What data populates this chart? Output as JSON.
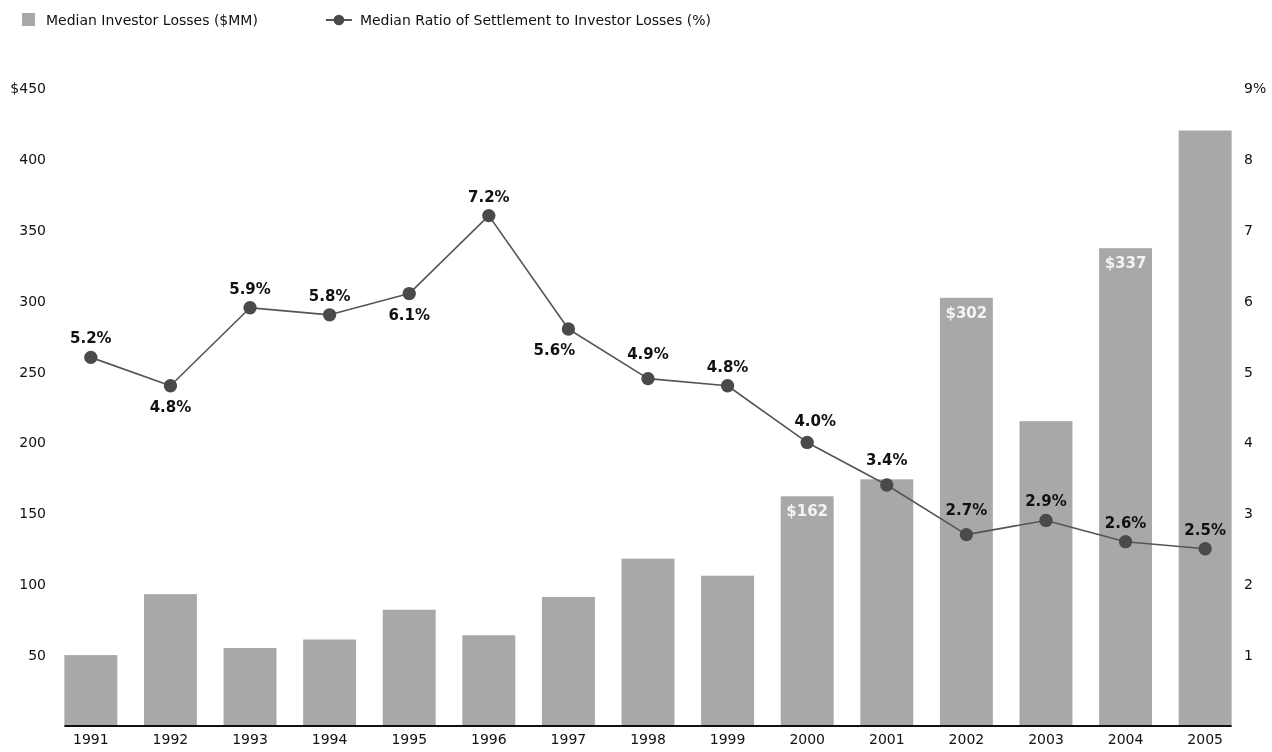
{
  "chart_data": {
    "type": "bar",
    "categories": [
      "1991",
      "1992",
      "1993",
      "1994",
      "1995",
      "1996",
      "1997",
      "1998",
      "1999",
      "2000",
      "2001",
      "2002",
      "2003",
      "2004",
      "2005"
    ],
    "series": [
      {
        "name": "Median Investor Losses ($MM)",
        "color": "#a8a8a8",
        "values": [
          50,
          93,
          55,
          61,
          82,
          64,
          91,
          118,
          106,
          162,
          174,
          302,
          215,
          337,
          420
        ],
        "value_labels": [
          null,
          null,
          null,
          null,
          null,
          null,
          null,
          null,
          null,
          "$162",
          null,
          "$302",
          null,
          "$337",
          null
        ]
      },
      {
        "type": "line",
        "axis": "y2",
        "name": "Median Ratio of Settlement to Investor Losses (%)",
        "color": "#555555",
        "values": [
          5.2,
          4.8,
          5.9,
          5.8,
          6.1,
          7.2,
          5.6,
          4.9,
          4.8,
          4,
          3.4,
          2.7,
          2.9,
          2.6,
          2.5
        ],
        "value_labels": [
          "5.2%",
          "4.8%",
          "5.9%",
          "5.8%",
          "6.1%",
          "7.2%",
          "5.6%",
          "4.9%",
          "4.8%",
          "4.0%",
          "3.4%",
          "2.7%",
          "2.9%",
          "2.6%",
          "2.5%"
        ]
      }
    ],
    "ylim": [
      0,
      450
    ],
    "yticks": [
      50,
      100,
      150,
      200,
      250,
      300,
      350,
      400,
      {
        "value": 450,
        "label": "$450"
      }
    ],
    "y2lim": [
      0,
      9
    ],
    "y2ticks": [
      1,
      2,
      3,
      4,
      5,
      6,
      7,
      8,
      {
        "value": 9,
        "label": "9%"
      }
    ],
    "legend": "top left",
    "marker": "circle",
    "line_style": "solid"
  }
}
